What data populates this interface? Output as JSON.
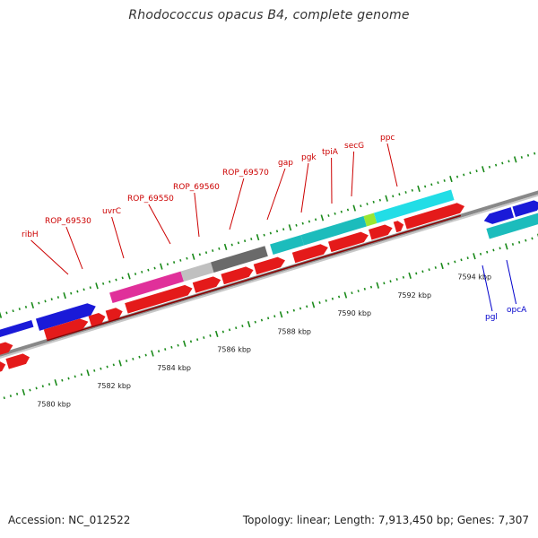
{
  "title": "Rhodococcus opacus B4, complete genome",
  "footer": {
    "accession": "Accession: NC_012522",
    "summary": "Topology: linear; Length: 7,913,450 bp; Genes: 7,307"
  },
  "colors": {
    "background": "#ffffff",
    "label_red": "#cc0000",
    "label_blue": "#0000cc",
    "tick_green": "#1a8a1a",
    "backbone": "#888888"
  },
  "axis_labels": [
    "7580 kbp",
    "7582 kbp",
    "7584 kbp",
    "7586 kbp",
    "7588 kbp",
    "7590 kbp",
    "7592 kbp",
    "7594 kbp"
  ],
  "gene_labels_top": [
    "ribH",
    "ROP_69530",
    "uvrC",
    "ROP_69550",
    "ROP_69560",
    "ROP_69570",
    "gap",
    "pgk",
    "tpiA",
    "secG",
    "ppc"
  ],
  "gene_labels_bottom": [
    "pgl",
    "opcA"
  ]
}
